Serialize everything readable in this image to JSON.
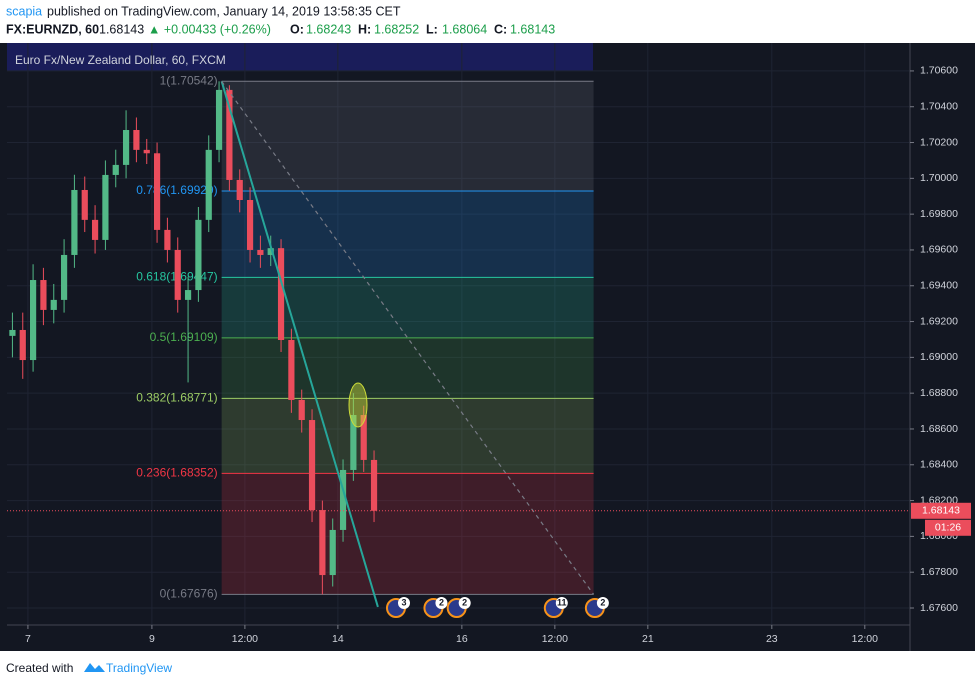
{
  "header": {
    "author": "scapia",
    "published": "published on TradingView.com, January 14, 2019 13:58:35 CET",
    "symbol": "FX:EURNZD, 60",
    "price": "1.68143",
    "change": "▲ +0.00433 (+0.26%)",
    "ohlc": [
      {
        "k": "O:",
        "v": "1.68243"
      },
      {
        "k": "H:",
        "v": "1.68252"
      },
      {
        "k": "L:",
        "v": "1.68064"
      },
      {
        "k": "C:",
        "v": "1.68143"
      }
    ]
  },
  "footer": {
    "text": "Created with",
    "brand": "TradingView"
  },
  "chart_data": {
    "type": "candlestick",
    "title": "Euro Fx/New Zealand Dollar, 60, FXCM",
    "x": [
      -6,
      -2,
      2,
      6,
      10,
      14,
      18,
      22,
      26,
      30,
      34,
      38,
      42,
      46,
      50,
      54,
      58,
      62,
      66,
      70,
      74,
      78,
      82,
      86,
      90,
      94,
      98,
      102,
      106,
      110,
      114,
      118,
      122,
      126,
      130,
      134
    ],
    "open": [
      1.6912,
      1.69153,
      1.68985,
      1.69432,
      1.69265,
      1.69321,
      1.69572,
      1.69935,
      1.69768,
      1.69656,
      1.70019,
      1.70075,
      1.7027,
      1.70159,
      1.7014,
      1.69712,
      1.696,
      1.69321,
      1.69376,
      1.69768,
      1.70159,
      1.70494,
      1.69991,
      1.69879,
      1.696,
      1.69572,
      1.6961,
      1.69097,
      1.68762,
      1.6865,
      1.68147,
      1.67784,
      1.68036,
      1.68371,
      1.68678,
      1.68427
    ],
    "high": [
      1.6925,
      1.6925,
      1.6952,
      1.695,
      1.6941,
      1.6966,
      1.7002,
      1.7001,
      1.6985,
      1.701,
      1.7016,
      1.7038,
      1.7034,
      1.7022,
      1.702,
      1.6978,
      1.6967,
      1.6945,
      1.6984,
      1.7024,
      1.70542,
      1.7052,
      1.7005,
      1.6995,
      1.6968,
      1.6968,
      1.6966,
      1.6916,
      1.6882,
      1.6871,
      1.682,
      1.681,
      1.6843,
      1.688,
      1.6873,
      1.6848
    ],
    "low": [
      1.69,
      1.6888,
      1.6892,
      1.6918,
      1.6919,
      1.6925,
      1.695,
      1.697,
      1.6958,
      1.696,
      1.6995,
      1.7,
      1.7009,
      1.7008,
      1.6964,
      1.6953,
      1.6925,
      1.6886,
      1.6931,
      1.697,
      1.7009,
      1.6993,
      1.6981,
      1.6953,
      1.695,
      1.6951,
      1.6903,
      1.6869,
      1.6858,
      1.6808,
      1.67676,
      1.6772,
      1.6797,
      1.6831,
      1.6836,
      1.6808
    ],
    "close": [
      1.69153,
      1.68985,
      1.69432,
      1.69265,
      1.69321,
      1.69572,
      1.69935,
      1.69768,
      1.69656,
      1.70019,
      1.70075,
      1.7027,
      1.70159,
      1.7014,
      1.69712,
      1.696,
      1.69321,
      1.69376,
      1.69768,
      1.70159,
      1.70494,
      1.69991,
      1.69879,
      1.696,
      1.69572,
      1.6961,
      1.69097,
      1.68762,
      1.6865,
      1.68147,
      1.67784,
      1.68036,
      1.68371,
      1.68678,
      1.68427,
      1.68143
    ],
    "up_color": "#53b987",
    "down_color": "#eb4d5c",
    "xlim": [
      -8.1,
      341.5
    ],
    "xticks": [
      {
        "value": 0,
        "label": "7"
      },
      {
        "value": 48,
        "label": "9"
      },
      {
        "value": 84,
        "label": "12:00"
      },
      {
        "value": 120,
        "label": "14"
      },
      {
        "value": 168,
        "label": "16"
      },
      {
        "value": 204,
        "label": "12:00"
      },
      {
        "value": 240,
        "label": "21"
      },
      {
        "value": 288,
        "label": "23"
      },
      {
        "value": 324,
        "label": "12:00"
      }
    ],
    "ylim": [
      1.67505,
      1.70756
    ],
    "yticks": [
      {
        "value": 1.706,
        "label": "1.70600"
      },
      {
        "value": 1.704,
        "label": "1.70400"
      },
      {
        "value": 1.702,
        "label": "1.70200"
      },
      {
        "value": 1.7,
        "label": "1.70000"
      },
      {
        "value": 1.698,
        "label": "1.69800"
      },
      {
        "value": 1.696,
        "label": "1.69600"
      },
      {
        "value": 1.694,
        "label": "1.69400"
      },
      {
        "value": 1.692,
        "label": "1.69200"
      },
      {
        "value": 1.69,
        "label": "1.69000"
      },
      {
        "value": 1.688,
        "label": "1.68800"
      },
      {
        "value": 1.686,
        "label": "1.68600"
      },
      {
        "value": 1.684,
        "label": "1.68400"
      },
      {
        "value": 1.682,
        "label": "1.68200"
      },
      {
        "value": 1.68,
        "label": "1.68000"
      },
      {
        "value": 1.678,
        "label": "1.67800"
      },
      {
        "value": 1.676,
        "label": "1.67600"
      }
    ],
    "grid": true,
    "last_price": 1.68143,
    "countdown": "01:26",
    "fib": {
      "x": [
        75,
        219
      ],
      "levels": [
        {
          "label": "1(1.70542)",
          "value": 1.70542,
          "color": "#787b86"
        },
        {
          "label": "0.786(1.69929)",
          "value": 1.69929,
          "color": "#2196f3"
        },
        {
          "label": "0.618(1.69447)",
          "value": 1.69447,
          "color": "#26c6a0"
        },
        {
          "label": "0.5(1.69109)",
          "value": 1.69109,
          "color": "#4caf50"
        },
        {
          "label": "0.382(1.68771)",
          "value": 1.68771,
          "color": "#9ccc65"
        },
        {
          "label": "0.236(1.68352)",
          "value": 1.68352,
          "color": "#f23645"
        },
        {
          "label": "0(1.67676)",
          "value": 1.67676,
          "color": "#787b86"
        }
      ]
    },
    "trendlines": [
      {
        "x": [
          75,
          135.5
        ],
        "y": [
          1.70542,
          1.67606
        ],
        "color": "#26a69a",
        "dashed": false
      },
      {
        "x": [
          75,
          219
        ],
        "y": [
          1.70542,
          1.67676
        ],
        "color": "#787b86",
        "dashed": true
      }
    ],
    "events": [
      {
        "x": 142.5,
        "count": 3
      },
      {
        "x": 157,
        "count": 2
      },
      {
        "x": 166,
        "count": 2
      },
      {
        "x": 203.6,
        "count": 11
      },
      {
        "x": 219.5,
        "count": 2
      }
    ]
  }
}
